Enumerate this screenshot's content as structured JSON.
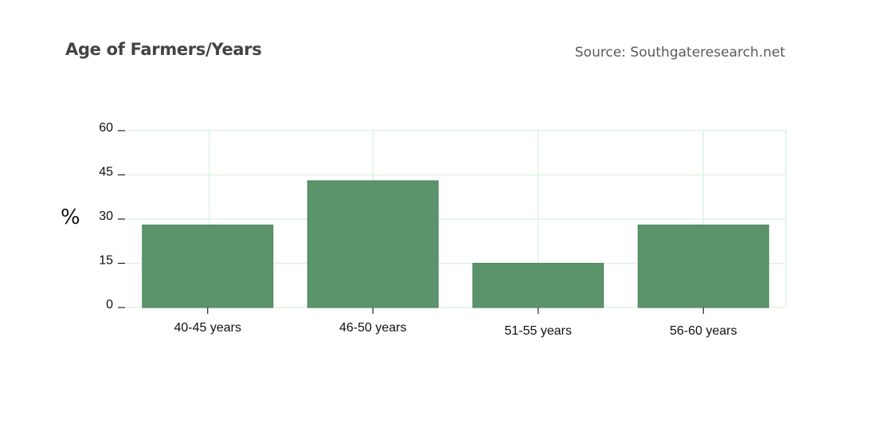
{
  "header": {
    "title": "Age of Farmers/Years",
    "source": "Source: Southgateresearch.net"
  },
  "chart_data": {
    "type": "bar",
    "title": "Age of Farmers/Years",
    "xlabel": "",
    "ylabel": "%",
    "categories": [
      "40-45 years",
      "46-50 years",
      "51-55 years",
      "56-60 years"
    ],
    "values": [
      28,
      43,
      15,
      28
    ],
    "ylim": [
      0,
      60
    ],
    "yticks": [
      0,
      15,
      30,
      45,
      60
    ],
    "grid": true,
    "legend": "none",
    "colors": {
      "bar": "#5b936b",
      "bar_edge": "#4d8560",
      "grid": "#dff2e3",
      "axis": "#222222"
    }
  }
}
